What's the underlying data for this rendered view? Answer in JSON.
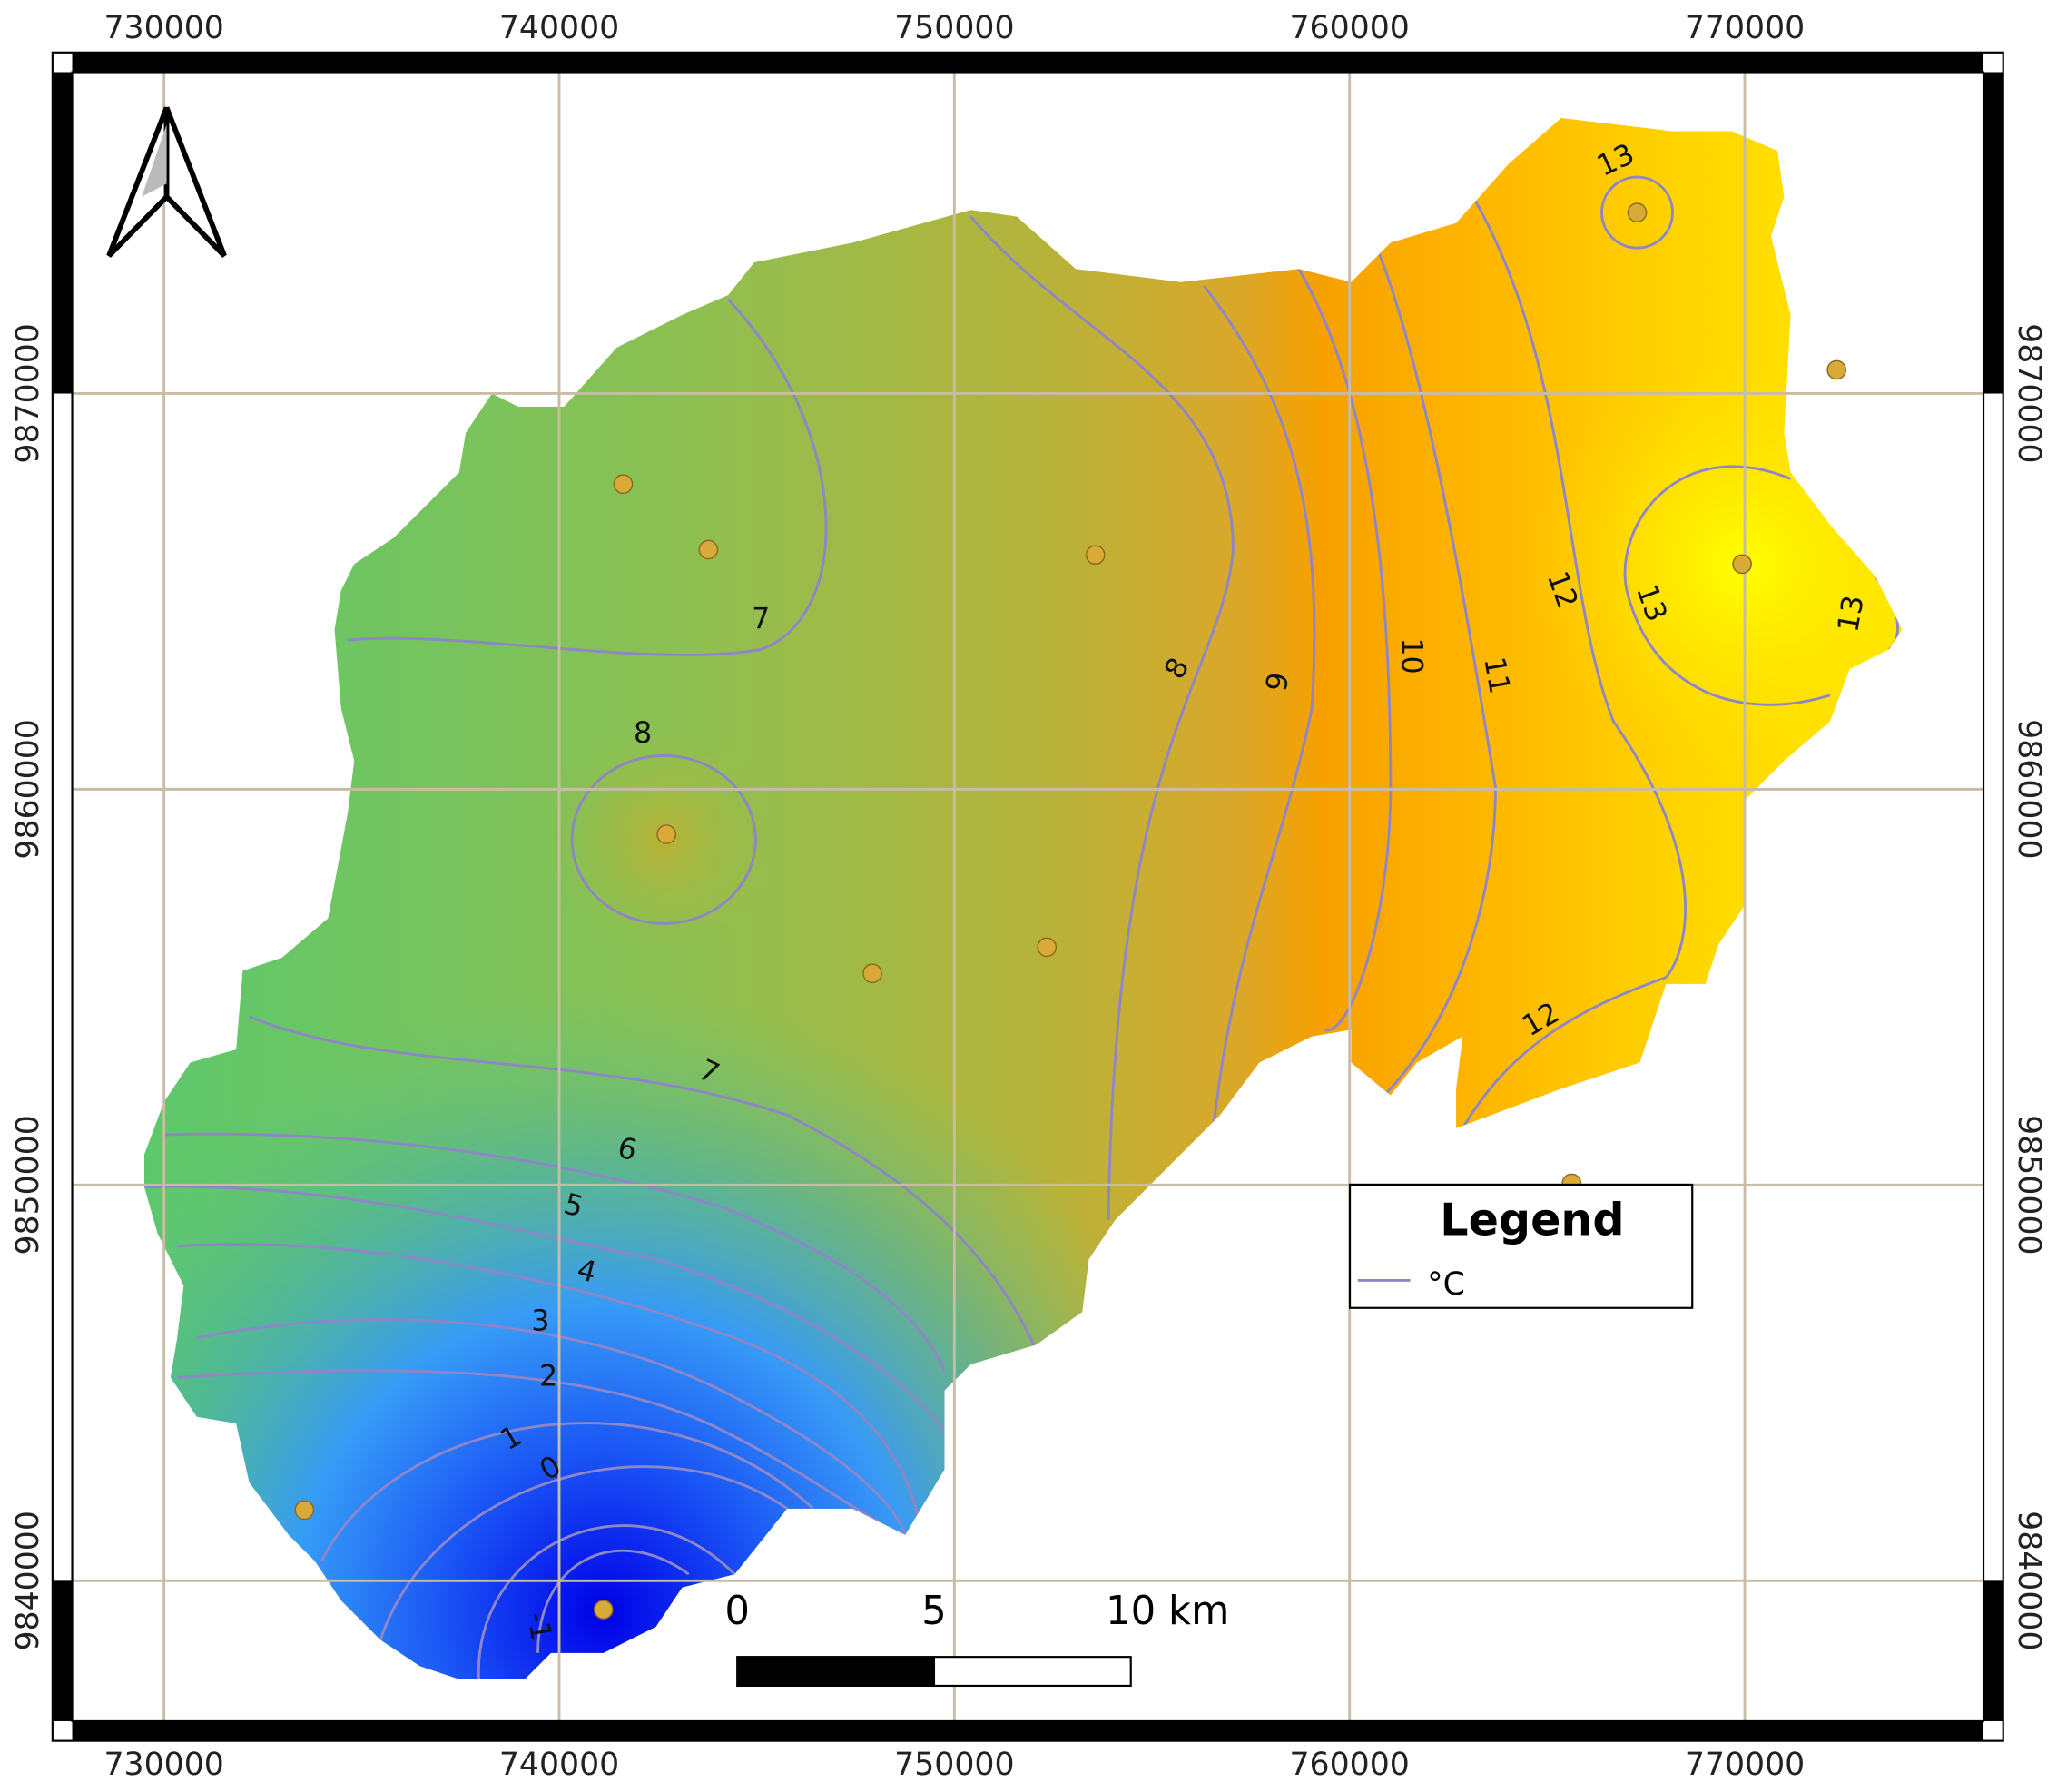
{
  "map": {
    "x_ticks": [
      730000,
      740000,
      750000,
      760000,
      770000
    ],
    "y_ticks": [
      9840000,
      9850000,
      9860000,
      9870000
    ],
    "contour_labels": [
      7,
      8,
      8,
      9,
      10,
      11,
      12,
      12,
      13,
      13,
      13,
      7,
      6,
      5,
      4,
      3,
      2,
      1,
      0,
      -1
    ],
    "legend": {
      "title": "Legend",
      "entries": [
        "°C"
      ]
    },
    "scale_bar": {
      "labels": [
        "0",
        "5",
        "10 km"
      ]
    }
  }
}
